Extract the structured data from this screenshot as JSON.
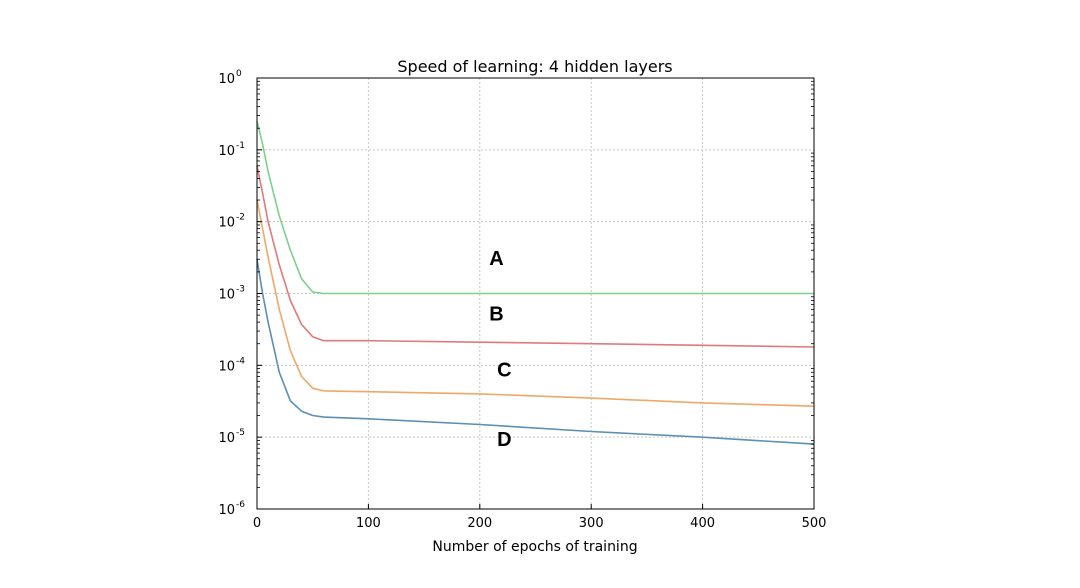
{
  "chart_data": {
    "type": "line",
    "title": "Speed of learning: 4 hidden layers",
    "xlabel": "Number of epochs of training",
    "ylabel": "",
    "xlim": [
      0,
      500
    ],
    "ylim": [
      1e-06,
      1
    ],
    "yscale": "log",
    "grid": true,
    "x_ticks": [
      "0",
      "100",
      "200",
      "300",
      "400",
      "500"
    ],
    "y_ticks": [
      {
        "base": "10",
        "exp": "0",
        "value": 1
      },
      {
        "base": "10",
        "exp": "-1",
        "value": 0.1
      },
      {
        "base": "10",
        "exp": "-2",
        "value": 0.01
      },
      {
        "base": "10",
        "exp": "-3",
        "value": 0.001
      },
      {
        "base": "10",
        "exp": "-4",
        "value": 0.0001
      },
      {
        "base": "10",
        "exp": "-5",
        "value": 1e-05
      },
      {
        "base": "10",
        "exp": "-6",
        "value": 1e-06
      }
    ],
    "series": [
      {
        "color": "#7fd08a",
        "points": [
          [
            0,
            0.25
          ],
          [
            5,
            0.12
          ],
          [
            10,
            0.05
          ],
          [
            20,
            0.012
          ],
          [
            30,
            0.004
          ],
          [
            40,
            0.0016
          ],
          [
            50,
            0.00105
          ],
          [
            60,
            0.001
          ],
          [
            100,
            0.001
          ],
          [
            200,
            0.001
          ],
          [
            300,
            0.001
          ],
          [
            400,
            0.001
          ],
          [
            500,
            0.001
          ]
        ]
      },
      {
        "color": "#e07a7a",
        "points": [
          [
            0,
            0.06
          ],
          [
            5,
            0.025
          ],
          [
            10,
            0.01
          ],
          [
            20,
            0.0025
          ],
          [
            30,
            0.0008
          ],
          [
            40,
            0.00037
          ],
          [
            50,
            0.00025
          ],
          [
            60,
            0.00022
          ],
          [
            100,
            0.00022
          ],
          [
            200,
            0.00021
          ],
          [
            300,
            0.0002
          ],
          [
            400,
            0.00019
          ],
          [
            500,
            0.00018
          ]
        ]
      },
      {
        "color": "#f0a868",
        "points": [
          [
            0,
            0.02
          ],
          [
            5,
            0.008
          ],
          [
            10,
            0.0032
          ],
          [
            20,
            0.0006
          ],
          [
            30,
            0.00016
          ],
          [
            40,
            7e-05
          ],
          [
            50,
            4.8e-05
          ],
          [
            60,
            4.4e-05
          ],
          [
            100,
            4.3e-05
          ],
          [
            200,
            4e-05
          ],
          [
            300,
            3.5e-05
          ],
          [
            400,
            3e-05
          ],
          [
            500,
            2.7e-05
          ]
        ]
      },
      {
        "color": "#5b8fb3",
        "points": [
          [
            0,
            0.003
          ],
          [
            5,
            0.001
          ],
          [
            10,
            0.0004
          ],
          [
            20,
            8e-05
          ],
          [
            30,
            3.2e-05
          ],
          [
            40,
            2.3e-05
          ],
          [
            50,
            2e-05
          ],
          [
            60,
            1.9e-05
          ],
          [
            100,
            1.8e-05
          ],
          [
            200,
            1.5e-05
          ],
          [
            300,
            1.2e-05
          ],
          [
            400,
            1e-05
          ],
          [
            500,
            8e-06
          ]
        ]
      }
    ],
    "annotations": [
      {
        "text": "A",
        "x": 215,
        "y": 0.0025
      },
      {
        "text": "B",
        "x": 215,
        "y": 0.00042
      },
      {
        "text": "C",
        "x": 222,
        "y": 7e-05
      },
      {
        "text": "D",
        "x": 222,
        "y": 7.5e-06
      }
    ]
  }
}
